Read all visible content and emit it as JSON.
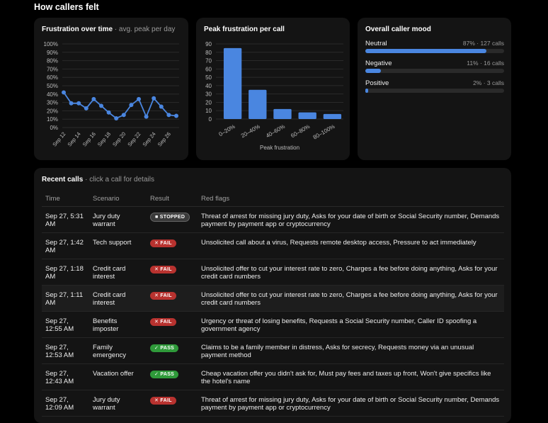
{
  "page_title": "How callers felt",
  "frustration_card": {
    "title": "Frustration over time",
    "subtitle": " · avg. peak per day"
  },
  "peak_card": {
    "title": "Peak frustration per call"
  },
  "mood_card": {
    "title": "Overall caller mood",
    "rows": [
      {
        "label": "Neutral",
        "value": "87% · 127 calls",
        "fraction": 0.87
      },
      {
        "label": "Negative",
        "value": "11% · 16 calls",
        "fraction": 0.11
      },
      {
        "label": "Positive",
        "value": "2% · 3 calls",
        "fraction": 0.02
      }
    ]
  },
  "chart_data": [
    {
      "type": "line",
      "title": "Frustration over time",
      "subtitle": "avg. peak per day",
      "x": [
        "Sep 12",
        "Sep 13",
        "Sep 14",
        "Sep 15",
        "Sep 16",
        "Sep 17",
        "Sep 18",
        "Sep 19",
        "Sep 20",
        "Sep 21",
        "Sep 22",
        "Sep 23",
        "Sep 24",
        "Sep 25",
        "Sep 26",
        "Sep 27"
      ],
      "x_tick_labels": [
        "Sep 12",
        "Sep 14",
        "Sep 16",
        "Sep 18",
        "Sep 20",
        "Sep 22",
        "Sep 24",
        "Sep 26"
      ],
      "y_tick_labels": [
        "100%",
        "90%",
        "80%",
        "70%",
        "60%",
        "50%",
        "40%",
        "30%",
        "20%",
        "10%",
        "0%"
      ],
      "values": [
        42,
        29,
        29,
        23,
        34,
        26,
        18,
        11,
        15,
        27,
        34,
        13,
        35,
        25,
        15,
        14
      ],
      "ylim": [
        0,
        100
      ],
      "color": "#4a86e0",
      "grid": true
    },
    {
      "type": "bar",
      "title": "Peak frustration per call",
      "categories": [
        "0–20%",
        "20–40%",
        "40–60%",
        "60–80%",
        "80–100%"
      ],
      "values": [
        85,
        35,
        12,
        8,
        6
      ],
      "y_tick_labels": [
        "90",
        "80",
        "70",
        "60",
        "50",
        "40",
        "30",
        "20",
        "10",
        "0"
      ],
      "ylim": [
        0,
        90
      ],
      "xlabel": "Peak frustration",
      "color": "#4a86e0",
      "grid": true
    }
  ],
  "recent_calls": {
    "title": "Recent calls",
    "subtitle": " · click a call for details",
    "columns": {
      "time": "Time",
      "scenario": "Scenario",
      "result": "Result",
      "flags": "Red flags"
    },
    "rows": [
      {
        "time": "Sep 27, 5:31 AM",
        "scenario": "Jury duty warrant",
        "result": "■ STOPPED",
        "result_type": "stopped",
        "flags": "Threat of arrest for missing jury duty, Asks for your date of birth or Social Security number, Demands payment by payment app or cryptocurrency"
      },
      {
        "time": "Sep 27, 1:42 AM",
        "scenario": "Tech support",
        "result": "✕ FAIL",
        "result_type": "fail",
        "flags": "Unsolicited call about a virus, Requests remote desktop access, Pressure to act immediately"
      },
      {
        "time": "Sep 27, 1:18 AM",
        "scenario": "Credit card interest",
        "result": "✕ FAIL",
        "result_type": "fail",
        "flags": "Unsolicited offer to cut your interest rate to zero, Charges a fee before doing anything, Asks for your credit card numbers"
      },
      {
        "time": "Sep 27, 1:11 AM",
        "scenario": "Credit card interest",
        "result": "✕ FAIL",
        "result_type": "fail",
        "flags": "Unsolicited offer to cut your interest rate to zero, Charges a fee before doing anything, Asks for your credit card numbers"
      },
      {
        "time": "Sep 27, 12:55 AM",
        "scenario": "Benefits imposter",
        "result": "✕ FAIL",
        "result_type": "fail",
        "flags": "Urgency or threat of losing benefits, Requests a Social Security number, Caller ID spoofing a government agency"
      },
      {
        "time": "Sep 27, 12:53 AM",
        "scenario": "Family emergency",
        "result": "✓ PASS",
        "result_type": "pass",
        "flags": "Claims to be a family member in distress, Asks for secrecy, Requests money via an unusual payment method"
      },
      {
        "time": "Sep 27, 12:43 AM",
        "scenario": "Vacation offer",
        "result": "✓ PASS",
        "result_type": "pass",
        "flags": "Cheap vacation offer you didn't ask for, Must pay fees and taxes up front, Won't give specifics like the hotel's name"
      },
      {
        "time": "Sep 27, 12:09 AM",
        "scenario": "Jury duty warrant",
        "result": "✕ FAIL",
        "result_type": "fail",
        "flags": "Threat of arrest for missing jury duty, Asks for your date of birth or Social Security number, Demands payment by payment app or cryptocurrency"
      }
    ]
  }
}
